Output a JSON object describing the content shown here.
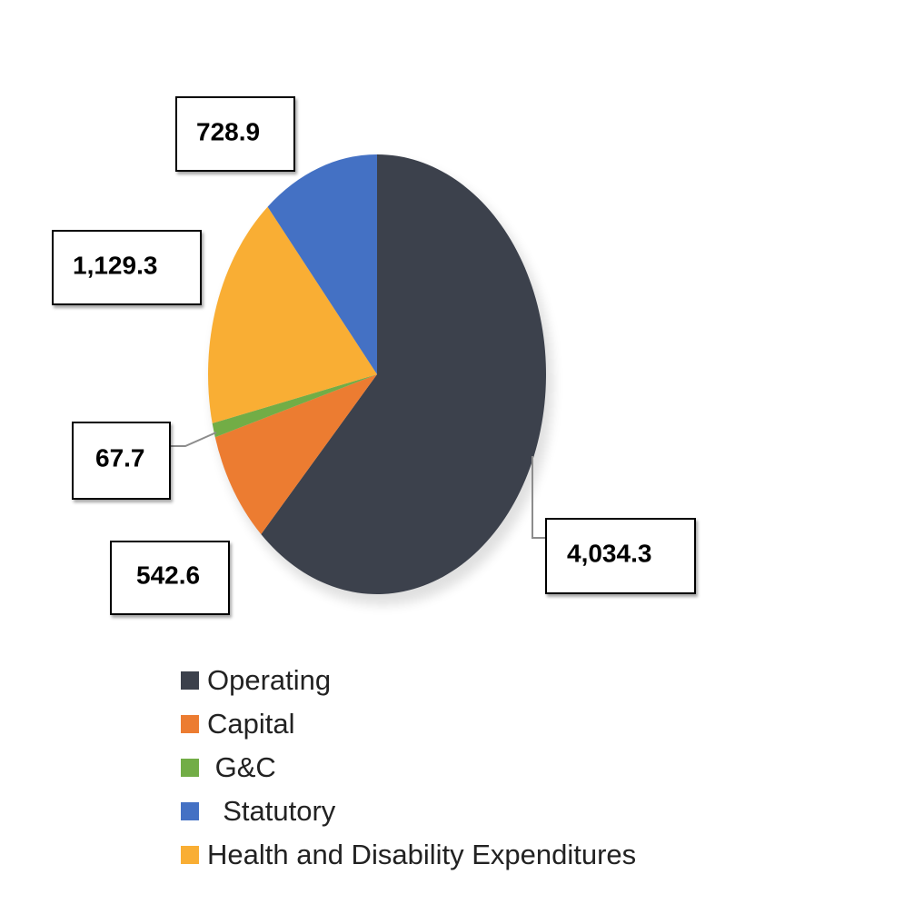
{
  "chart_data": {
    "type": "pie",
    "slices": [
      {
        "name": "Operating",
        "label": "4,034.3",
        "value": 4034.3,
        "color": "#3c414c"
      },
      {
        "name": "Capital",
        "label": "542.6",
        "value": 542.6,
        "color": "#ec7c31"
      },
      {
        "name": "G&C",
        "label": "67.7",
        "value": 67.7,
        "color": "#72ad46"
      },
      {
        "name": "Health and Disability Expenditures",
        "label": "1,129.3",
        "value": 1129.3,
        "color": "#f9ae34"
      },
      {
        "name": "Statutory",
        "label": "728.9",
        "value": 728.9,
        "color": "#4471c4"
      }
    ],
    "legend": {
      "placement": "bottom",
      "items": [
        {
          "label": "Operating",
          "color": "#3c414c"
        },
        {
          "label": "Capital",
          "color": "#ec7c31"
        },
        {
          "label": " G&C",
          "color": "#72ad46"
        },
        {
          "label": "  Statutory",
          "color": "#4471c4"
        },
        {
          "label": "Health and Disability Expenditures",
          "color": "#f9ae34"
        }
      ]
    }
  }
}
